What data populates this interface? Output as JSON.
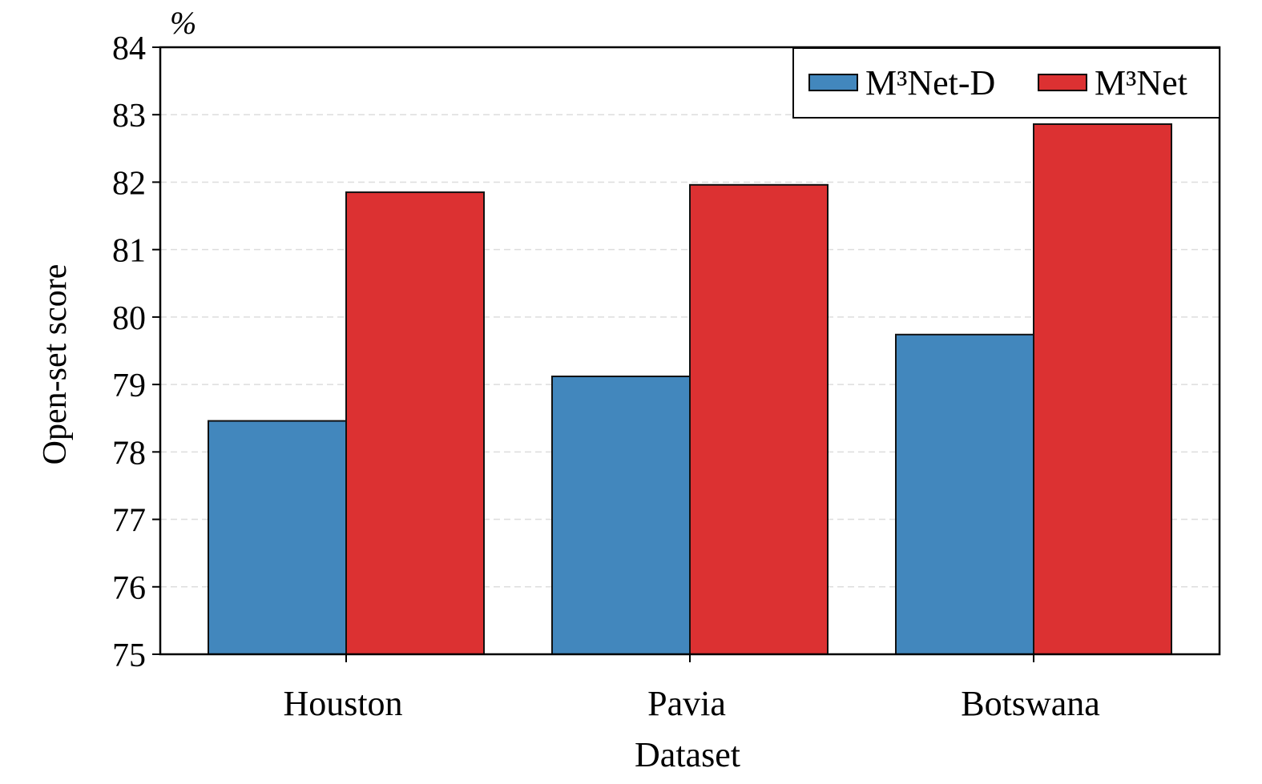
{
  "chart_data": {
    "type": "bar",
    "title": "",
    "unit_label": "%",
    "xlabel": "Dataset",
    "ylabel": "Open-set score",
    "categories": [
      "Houston",
      "Pavia",
      "Botswana"
    ],
    "series": [
      {
        "name": "M³Net-D",
        "color": "#4287bd",
        "values": [
          78.46,
          79.12,
          79.74
        ]
      },
      {
        "name": "M³Net",
        "color": "#dc3132",
        "values": [
          81.85,
          81.96,
          82.86
        ]
      }
    ],
    "ylim": [
      75,
      84
    ],
    "yticks": [
      "75",
      "76",
      "77",
      "78",
      "79",
      "80",
      "81",
      "82",
      "83",
      "84"
    ],
    "grid": "horizontal dashed",
    "legend": "top-right"
  }
}
